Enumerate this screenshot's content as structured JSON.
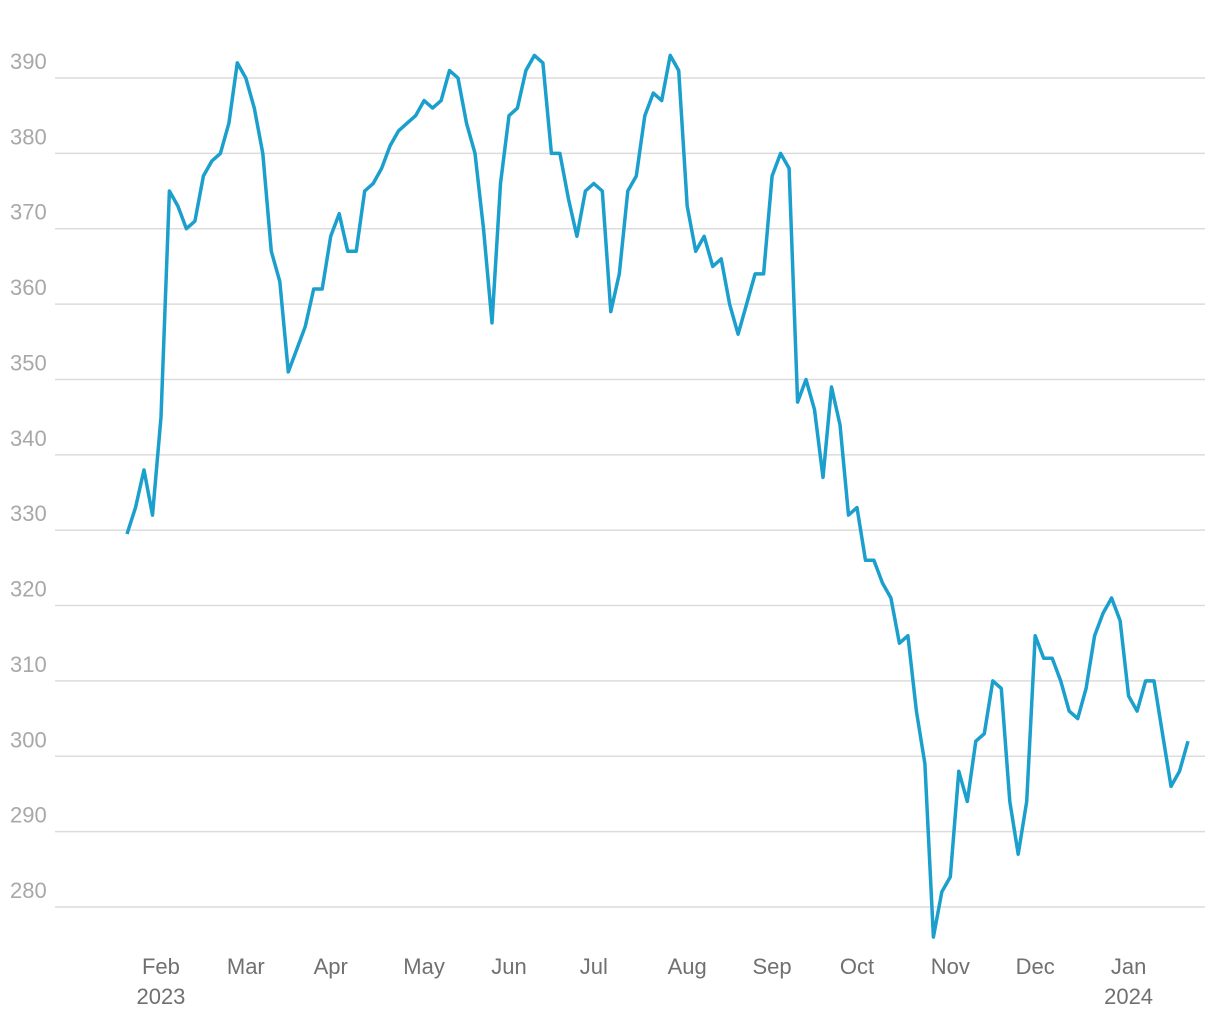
{
  "chart_data": {
    "type": "line",
    "categories": [
      null,
      null,
      null,
      null,
      "Feb",
      null,
      null,
      null,
      null,
      null,
      null,
      null,
      null,
      null,
      "Mar",
      null,
      null,
      null,
      null,
      null,
      null,
      null,
      null,
      null,
      "Apr",
      null,
      null,
      null,
      null,
      null,
      null,
      null,
      null,
      null,
      null,
      "May",
      null,
      null,
      null,
      null,
      null,
      null,
      null,
      null,
      null,
      "Jun",
      null,
      null,
      null,
      null,
      null,
      null,
      null,
      null,
      null,
      "Jul",
      null,
      null,
      null,
      null,
      null,
      null,
      null,
      null,
      null,
      null,
      "Aug",
      null,
      null,
      null,
      null,
      null,
      null,
      null,
      null,
      null,
      "Sep",
      null,
      null,
      null,
      null,
      null,
      null,
      null,
      null,
      null,
      "Oct",
      null,
      null,
      null,
      null,
      null,
      null,
      null,
      null,
      null,
      null,
      "Nov",
      null,
      null,
      null,
      null,
      null,
      null,
      null,
      null,
      null,
      "Dec",
      null,
      null,
      null,
      null,
      null,
      null,
      null,
      null,
      null,
      null,
      "Jan",
      null,
      null,
      null,
      null,
      null,
      null,
      null
    ],
    "category_years": [
      null,
      null,
      null,
      null,
      "2023",
      null,
      null,
      null,
      null,
      null,
      null,
      null,
      null,
      null,
      null,
      null,
      null,
      null,
      null,
      null,
      null,
      null,
      null,
      null,
      null,
      null,
      null,
      null,
      null,
      null,
      null,
      null,
      null,
      null,
      null,
      null,
      null,
      null,
      null,
      null,
      null,
      null,
      null,
      null,
      null,
      null,
      null,
      null,
      null,
      null,
      null,
      null,
      null,
      null,
      null,
      null,
      null,
      null,
      null,
      null,
      null,
      null,
      null,
      null,
      null,
      null,
      null,
      null,
      null,
      null,
      null,
      null,
      null,
      null,
      null,
      null,
      null,
      null,
      null,
      null,
      null,
      null,
      null,
      null,
      null,
      null,
      null,
      null,
      null,
      null,
      null,
      null,
      null,
      null,
      null,
      null,
      null,
      null,
      null,
      null,
      null,
      null,
      null,
      null,
      null,
      null,
      null,
      null,
      null,
      null,
      null,
      null,
      null,
      null,
      null,
      null,
      null,
      null,
      "2024",
      null,
      null,
      null,
      null,
      null,
      null,
      null
    ],
    "values": [
      329.5,
      333,
      338,
      332,
      345,
      375,
      373,
      370,
      371,
      377,
      379,
      380,
      384,
      392,
      390,
      386,
      380,
      367,
      363,
      351,
      354,
      357,
      362,
      362,
      369,
      372,
      367,
      367,
      375,
      376,
      378,
      381,
      383,
      384,
      385,
      387,
      386,
      387,
      391,
      390,
      384,
      380,
      370,
      357.5,
      376,
      385,
      386,
      391,
      393,
      392,
      380,
      380,
      374,
      369,
      375,
      376,
      375,
      359,
      364,
      375,
      377,
      385,
      388,
      387,
      393,
      391,
      373,
      367,
      369,
      365,
      366,
      360,
      356,
      360,
      364,
      364,
      377,
      380,
      378,
      347,
      350,
      346,
      337,
      349,
      344,
      332,
      333,
      326,
      326,
      323,
      321,
      315,
      316,
      306,
      299,
      276,
      282,
      284,
      298,
      294,
      302,
      303,
      310,
      309,
      294,
      287,
      294,
      316,
      313,
      313,
      310,
      306,
      305,
      309,
      316,
      319,
      321,
      318,
      308,
      306,
      310,
      310,
      303,
      296,
      298,
      302
    ],
    "color": "#1b9fcd",
    "ylim": [
      274,
      398
    ],
    "yticks": [
      280,
      290,
      300,
      310,
      320,
      330,
      340,
      350,
      360,
      370,
      380,
      390
    ],
    "grid": true
  }
}
